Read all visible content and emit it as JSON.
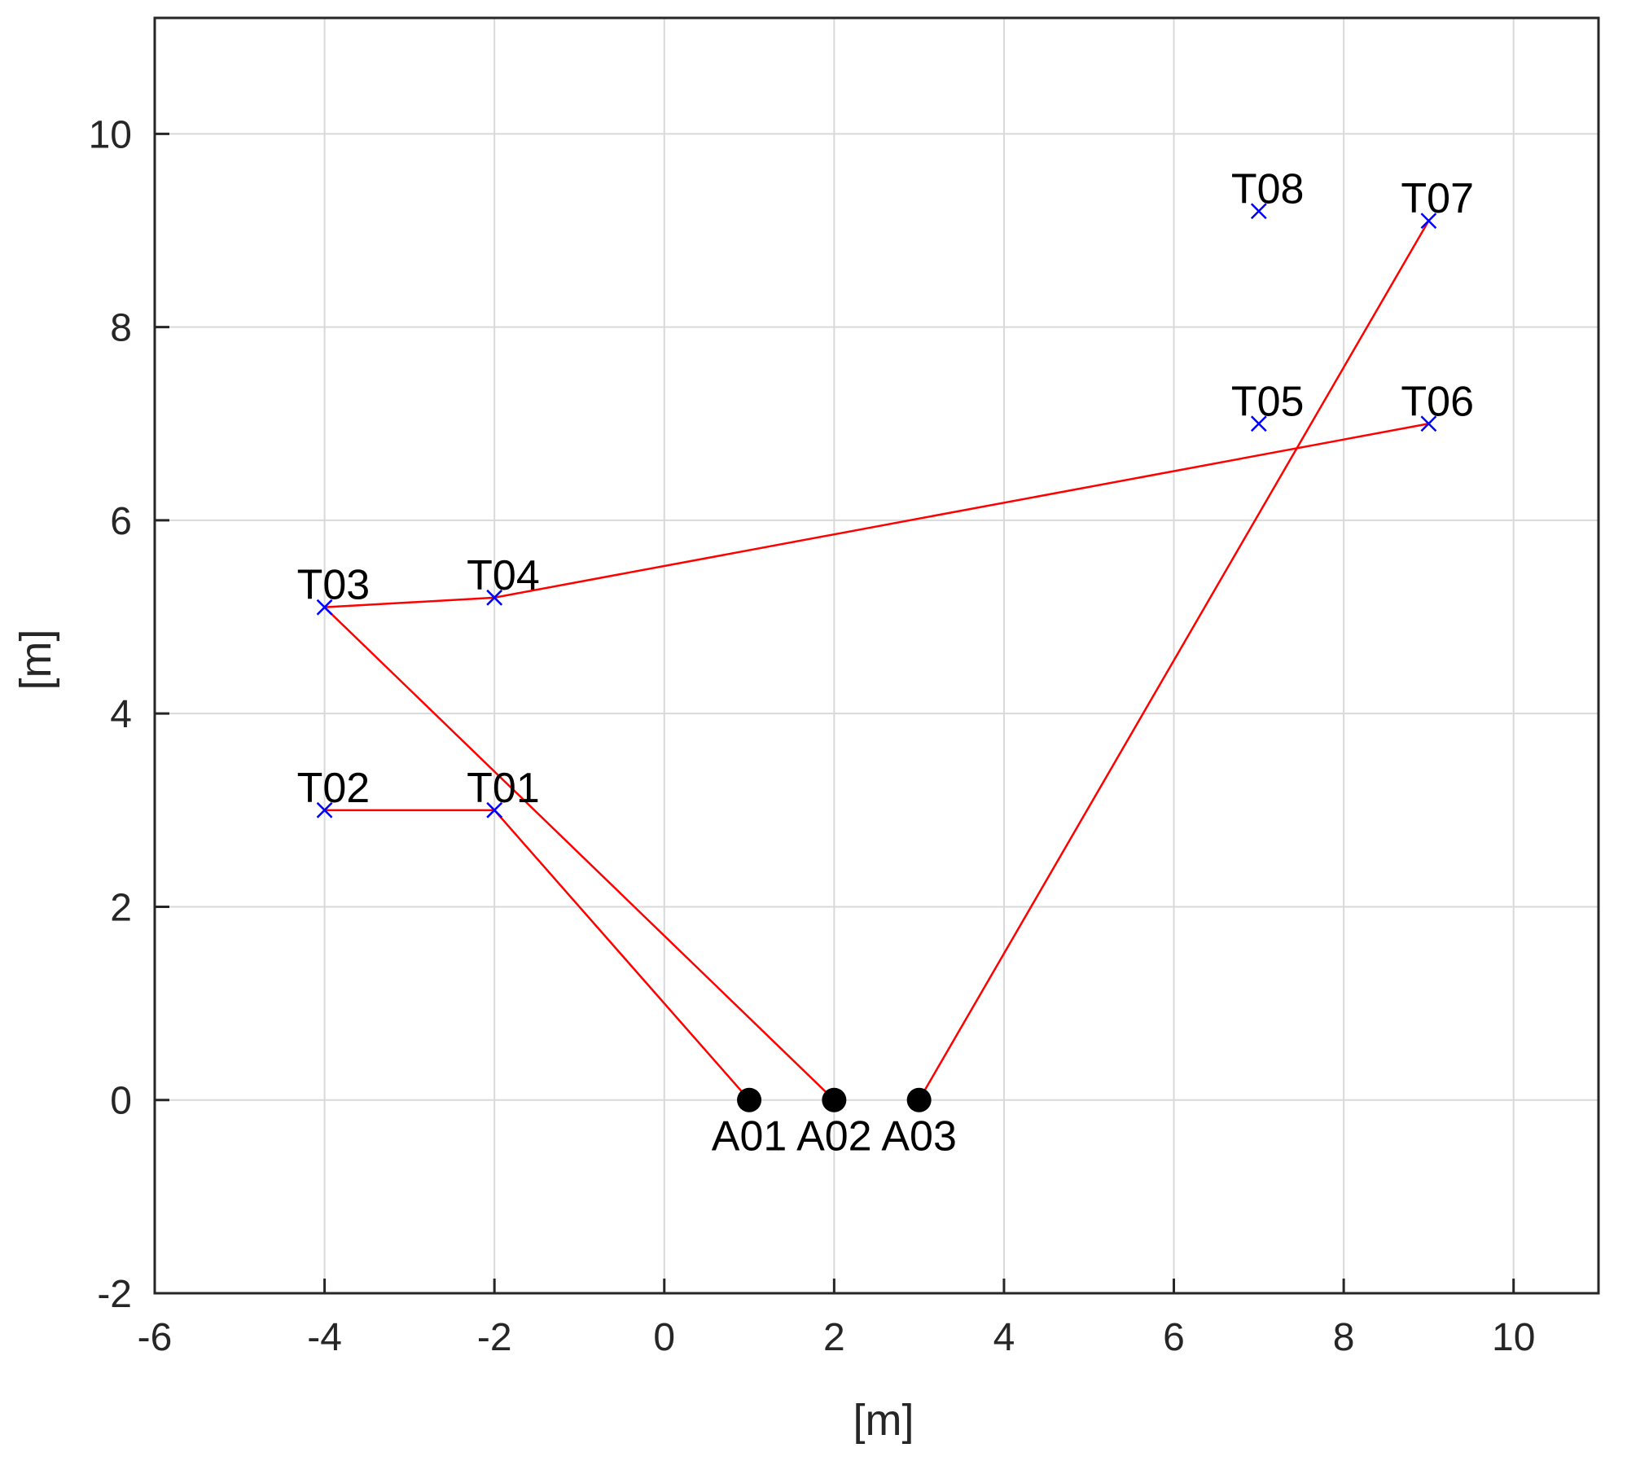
{
  "chart_data": {
    "type": "scatter",
    "title": "",
    "xlabel": "[m]",
    "ylabel": "[m]",
    "xlim": [
      -6,
      11
    ],
    "ylim": [
      -2,
      11.2
    ],
    "xticks": [
      -6,
      -4,
      -2,
      0,
      2,
      4,
      6,
      8,
      10
    ],
    "yticks": [
      -2,
      0,
      2,
      4,
      6,
      8,
      10
    ],
    "xtick_labels": [
      "-6",
      "-4",
      "-2",
      "0",
      "2",
      "4",
      "6",
      "8",
      "10"
    ],
    "ytick_labels": [
      "-2",
      "0",
      "2",
      "4",
      "6",
      "8",
      "10"
    ],
    "grid": true,
    "anchors": [
      {
        "label": "A01",
        "x": 1,
        "y": 0
      },
      {
        "label": "A02",
        "x": 2,
        "y": 0
      },
      {
        "label": "A03",
        "x": 3,
        "y": 0
      }
    ],
    "tags": [
      {
        "label": "T01",
        "x": -2,
        "y": 3
      },
      {
        "label": "T02",
        "x": -4,
        "y": 3
      },
      {
        "label": "T03",
        "x": -4,
        "y": 5.1
      },
      {
        "label": "T04",
        "x": -2,
        "y": 5.2
      },
      {
        "label": "T05",
        "x": 7,
        "y": 7
      },
      {
        "label": "T06",
        "x": 9,
        "y": 7
      },
      {
        "label": "T07",
        "x": 9,
        "y": 9.1
      },
      {
        "label": "T08",
        "x": 7,
        "y": 9.2
      }
    ],
    "links": [
      {
        "from": "A01",
        "to": "T01"
      },
      {
        "from": "T01",
        "to": "T02"
      },
      {
        "from": "A02",
        "to": "T03"
      },
      {
        "from": "T03",
        "to": "T04"
      },
      {
        "from": "T04",
        "to": "T06"
      },
      {
        "from": "A03",
        "to": "T07"
      }
    ],
    "colors": {
      "axes": "#262626",
      "grid": "#d9d9d9",
      "link": "#ff0000",
      "tag_marker": "#0000ff",
      "anchor_marker": "#000000"
    }
  }
}
